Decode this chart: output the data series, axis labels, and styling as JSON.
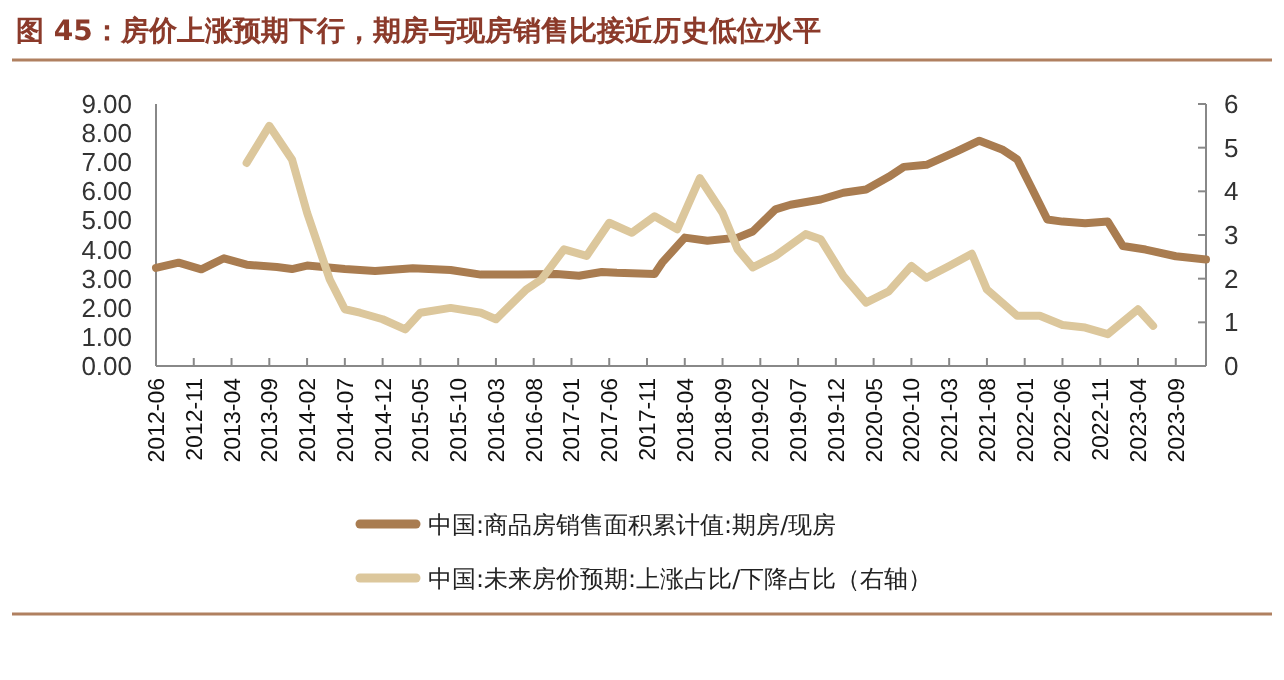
{
  "chart_data": {
    "type": "line",
    "title": "图 45：房价上涨预期下行，期房与现房销售比接近历史低位水平",
    "xlim": [
      "2012-06",
      "2024-01"
    ],
    "xticks": [
      "2012-06",
      "2012-11",
      "2013-04",
      "2013-09",
      "2014-02",
      "2014-07",
      "2014-12",
      "2015-05",
      "2015-10",
      "2016-03",
      "2016-08",
      "2017-01",
      "2017-06",
      "2017-11",
      "2018-04",
      "2018-09",
      "2019-02",
      "2019-07",
      "2019-12",
      "2020-05",
      "2020-10",
      "2021-03",
      "2021-08",
      "2022-01",
      "2022-06",
      "2022-11",
      "2023-04",
      "2023-09"
    ],
    "ylim": [
      0,
      9
    ],
    "yticks": [
      {
        "value": 0,
        "label": "0.00"
      },
      {
        "value": 1,
        "label": "1.00"
      },
      {
        "value": 2,
        "label": "2.00"
      },
      {
        "value": 3,
        "label": "3.00"
      },
      {
        "value": 4,
        "label": "4.00"
      },
      {
        "value": 5,
        "label": "5.00"
      },
      {
        "value": 6,
        "label": "6.00"
      },
      {
        "value": 7,
        "label": "7.00"
      },
      {
        "value": 8,
        "label": "8.00"
      },
      {
        "value": 9,
        "label": "9.00"
      }
    ],
    "y2lim": [
      0,
      6
    ],
    "y2ticks": [
      0,
      1,
      2,
      3,
      4,
      5,
      6
    ],
    "grid": false,
    "legend": "bottom",
    "marker": "none",
    "line_style": "solid",
    "series": [
      {
        "name": "中国:商品房销售面积累计值:期房/现房",
        "color": "#a97c50",
        "x": [
          "2012-06",
          "2012-09",
          "2012-12",
          "2013-03",
          "2013-06",
          "2013-10",
          "2013-12",
          "2014-02",
          "2014-07",
          "2014-11",
          "2015-04",
          "2015-09",
          "2016-01",
          "2016-06",
          "2016-11",
          "2017-02",
          "2017-05",
          "2017-07",
          "2017-10",
          "2017-12",
          "2018-01",
          "2018-04",
          "2018-07",
          "2018-11",
          "2019-01",
          "2019-04",
          "2019-06",
          "2019-10",
          "2020-01",
          "2020-04",
          "2020-07",
          "2020-09",
          "2020-12",
          "2021-04",
          "2021-07",
          "2021-10",
          "2021-12",
          "2022-02",
          "2022-04",
          "2022-06",
          "2022-09",
          "2022-12",
          "2023-02",
          "2023-05",
          "2023-09",
          "2024-01"
        ],
        "values": [
          3.37,
          3.55,
          3.32,
          3.7,
          3.48,
          3.4,
          3.33,
          3.45,
          3.33,
          3.26,
          3.36,
          3.3,
          3.14,
          3.14,
          3.16,
          3.1,
          3.23,
          3.2,
          3.18,
          3.16,
          3.55,
          4.41,
          4.3,
          4.41,
          4.62,
          5.38,
          5.54,
          5.72,
          5.95,
          6.06,
          6.5,
          6.84,
          6.91,
          7.37,
          7.74,
          7.44,
          7.1,
          6.07,
          5.03,
          4.96,
          4.9,
          4.96,
          4.12,
          4.0,
          3.77,
          3.66
        ]
      },
      {
        "name": "中国:未来房价预期:上涨占比/下降占比（右轴）",
        "color": "#dcc79c",
        "axis": "y2",
        "x": [
          "2013-06",
          "2013-09",
          "2013-12",
          "2014-02",
          "2014-05",
          "2014-07",
          "2014-09",
          "2014-12",
          "2015-03",
          "2015-05",
          "2015-09",
          "2016-01",
          "2016-03",
          "2016-07",
          "2016-09",
          "2016-12",
          "2017-03",
          "2017-06",
          "2017-09",
          "2017-12",
          "2018-03",
          "2018-06",
          "2018-09",
          "2018-11",
          "2019-01",
          "2019-04",
          "2019-08",
          "2019-10",
          "2020-01",
          "2020-04",
          "2020-07",
          "2020-10",
          "2020-12",
          "2021-03",
          "2021-06",
          "2021-08",
          "2021-12",
          "2022-03",
          "2022-06",
          "2022-09",
          "2022-12",
          "2023-04",
          "2023-06"
        ],
        "values": [
          4.65,
          5.5,
          4.73,
          3.51,
          1.98,
          1.3,
          1.22,
          1.07,
          0.84,
          1.22,
          1.33,
          1.22,
          1.07,
          1.75,
          1.98,
          2.67,
          2.52,
          3.28,
          3.05,
          3.43,
          3.13,
          4.3,
          3.51,
          2.67,
          2.26,
          2.52,
          3.02,
          2.9,
          2.06,
          1.45,
          1.71,
          2.29,
          2.02,
          2.29,
          2.57,
          1.75,
          1.15,
          1.15,
          0.94,
          0.88,
          0.73,
          1.3,
          0.92
        ]
      }
    ]
  }
}
